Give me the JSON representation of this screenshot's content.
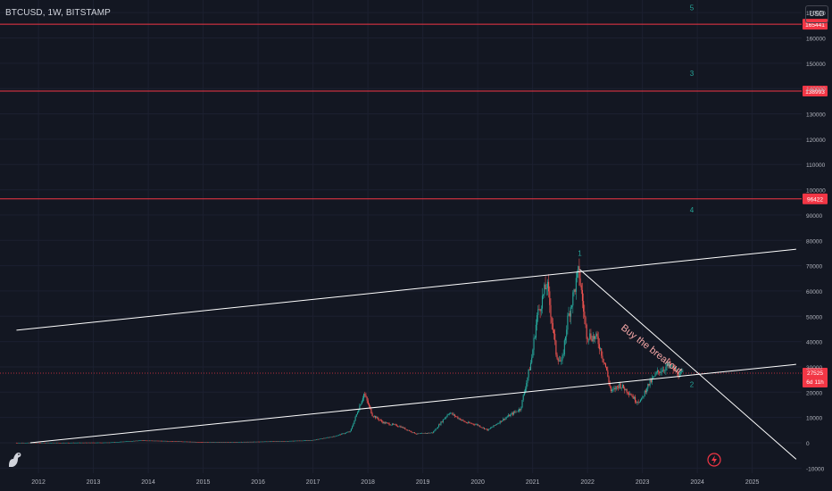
{
  "header": {
    "symbol": "BTCUSD, 1W, BITSTAMP",
    "currency_button": "USD"
  },
  "icons": {
    "logo": "tradingview-dino-logo",
    "snapshot": "lightning-icon"
  },
  "colors": {
    "background": "#131722",
    "bull": "#26a69a",
    "bear": "#ef5350",
    "level_line": "#f23645",
    "trend_line": "#ffffff",
    "price_line": "#f23645",
    "wave_label": "#26a69a",
    "axis_text": "#b2b5be"
  },
  "chart_data": {
    "type": "candlestick",
    "title": "BTCUSD, 1W, BITSTAMP",
    "y_ticks": [
      "170000",
      "160000",
      "150000",
      "140000",
      "130000",
      "120000",
      "110000",
      "100000",
      "90000",
      "80000",
      "70000",
      "60000",
      "50000",
      "40000",
      "30000",
      "20000",
      "10000",
      "0",
      "-10000"
    ],
    "y_tick_values": [
      170000,
      160000,
      150000,
      140000,
      130000,
      120000,
      110000,
      100000,
      90000,
      80000,
      70000,
      60000,
      50000,
      40000,
      30000,
      20000,
      10000,
      0,
      -10000
    ],
    "x_ticks": [
      "2012",
      "2013",
      "2014",
      "2015",
      "2016",
      "2017",
      "2018",
      "2019",
      "2020",
      "2021",
      "2022",
      "2023",
      "2024",
      "2025"
    ],
    "x_tick_values": [
      2012,
      2013,
      2014,
      2015,
      2016,
      2017,
      2018,
      2019,
      2020,
      2021,
      2022,
      2023,
      2024,
      2025
    ],
    "xlim": [
      2011.3,
      2025.9
    ],
    "ylim": [
      -12000,
      175000
    ],
    "price_points": [
      [
        2011.6,
        5
      ],
      [
        2012.5,
        10
      ],
      [
        2013.3,
        100
      ],
      [
        2013.9,
        950
      ],
      [
        2014.5,
        600
      ],
      [
        2015.0,
        250
      ],
      [
        2015.8,
        350
      ],
      [
        2016.5,
        650
      ],
      [
        2017.0,
        1000
      ],
      [
        2017.4,
        2500
      ],
      [
        2017.7,
        4500
      ],
      [
        2017.95,
        19500
      ],
      [
        2018.1,
        11000
      ],
      [
        2018.3,
        8000
      ],
      [
        2018.6,
        6500
      ],
      [
        2018.9,
        3500
      ],
      [
        2019.2,
        4000
      ],
      [
        2019.5,
        12000
      ],
      [
        2019.8,
        8000
      ],
      [
        2020.0,
        7200
      ],
      [
        2020.2,
        5000
      ],
      [
        2020.5,
        9500
      ],
      [
        2020.8,
        13500
      ],
      [
        2021.0,
        33000
      ],
      [
        2021.1,
        50000
      ],
      [
        2021.28,
        63000
      ],
      [
        2021.45,
        35000
      ],
      [
        2021.55,
        31000
      ],
      [
        2021.65,
        48000
      ],
      [
        2021.86,
        68000
      ],
      [
        2022.0,
        43000
      ],
      [
        2022.2,
        41000
      ],
      [
        2022.35,
        30000
      ],
      [
        2022.45,
        20000
      ],
      [
        2022.6,
        23000
      ],
      [
        2022.8,
        19500
      ],
      [
        2022.9,
        16500
      ],
      [
        2023.0,
        16800
      ],
      [
        2023.1,
        22000
      ],
      [
        2023.3,
        28000
      ],
      [
        2023.5,
        30500
      ],
      [
        2023.6,
        29000
      ],
      [
        2023.7,
        26500
      ],
      [
        2023.75,
        27525
      ]
    ],
    "horizontal_levels": [
      {
        "label": "165441",
        "value": 165441
      },
      {
        "label": "138993",
        "value": 138993
      },
      {
        "label": "96422",
        "value": 96422
      }
    ],
    "current_price": {
      "label": "27525",
      "value": 27525,
      "countdown": "6d 11h"
    },
    "trend_lines": [
      {
        "from": [
          2011.6,
          44500
        ],
        "to": [
          2025.8,
          76500
        ]
      },
      {
        "from": [
          2011.85,
          0
        ],
        "to": [
          2025.8,
          31000
        ]
      },
      {
        "from": [
          2021.86,
          68500
        ],
        "to": [
          2025.8,
          -6500
        ]
      }
    ],
    "wave_labels": [
      {
        "text": "5",
        "x": 2023.9,
        "y": 171000
      },
      {
        "text": "3",
        "x": 2023.9,
        "y": 145000
      },
      {
        "text": "4",
        "x": 2023.9,
        "y": 91000
      },
      {
        "text": "1",
        "x": 2021.86,
        "y": 74000
      },
      {
        "text": "2",
        "x": 2023.9,
        "y": 22000
      }
    ],
    "annotation": {
      "text": "Buy the breakout",
      "x": 2022.6,
      "y": 45000,
      "angle": 38
    }
  }
}
